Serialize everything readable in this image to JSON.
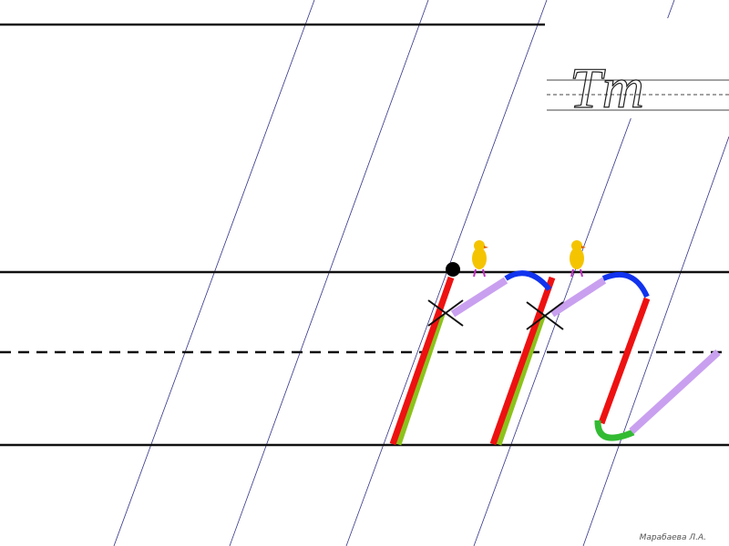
{
  "sample_letters": "Тт",
  "author": "Марабаева Л.А."
}
